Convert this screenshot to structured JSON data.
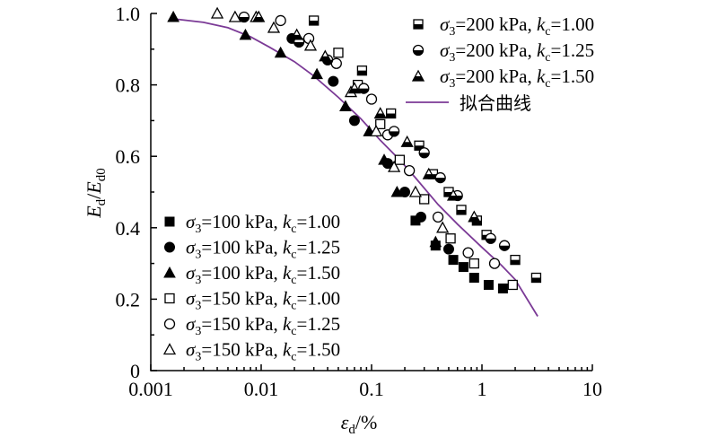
{
  "chart_data": {
    "type": "scatter",
    "x_scale": "log",
    "xlim": [
      0.001,
      10
    ],
    "ylim": [
      0,
      1.0
    ],
    "x_ticks": [
      {
        "value": 0.001,
        "label": "0.001"
      },
      {
        "value": 0.01,
        "label": "0.01"
      },
      {
        "value": 0.1,
        "label": "0.1"
      },
      {
        "value": 1,
        "label": "1"
      },
      {
        "value": 10,
        "label": "10"
      }
    ],
    "y_ticks": [
      {
        "value": 0,
        "label": "0"
      },
      {
        "value": 0.2,
        "label": "0.2"
      },
      {
        "value": 0.4,
        "label": "0.4"
      },
      {
        "value": 0.6,
        "label": "0.6"
      },
      {
        "value": 0.8,
        "label": "0.8"
      },
      {
        "value": 1.0,
        "label": "1.0"
      }
    ],
    "xlabel": {
      "base": "ε",
      "sub": "d",
      "suffix": "/%"
    },
    "ylabel": {
      "a": "E",
      "a_sub": "d",
      "sep": "/",
      "b": "E",
      "b_sub": "d0"
    },
    "grid": false,
    "series": [
      {
        "name": "σ3=100 kPa, kc=1.00",
        "marker": "square-filled",
        "legend": {
          "pre": "σ",
          "sub1": "3",
          "mid": "=100 kPa, ",
          "k": "k",
          "sub2": "c",
          "post": "=1.00"
        },
        "legend_group": "lower-left",
        "points": [
          [
            0.25,
            0.42
          ],
          [
            0.38,
            0.35
          ],
          [
            0.55,
            0.31
          ],
          [
            0.68,
            0.29
          ],
          [
            0.85,
            0.26
          ],
          [
            1.15,
            0.24
          ],
          [
            1.55,
            0.23
          ]
        ]
      },
      {
        "name": "σ3=100 kPa, kc=1.25",
        "marker": "circle-filled",
        "legend": {
          "pre": "σ",
          "sub1": "3",
          "mid": "=100 kPa, ",
          "k": "k",
          "sub2": "c",
          "post": "=1.25"
        },
        "legend_group": "lower-left",
        "points": [
          [
            0.019,
            0.93
          ],
          [
            0.045,
            0.81
          ],
          [
            0.07,
            0.7
          ],
          [
            0.14,
            0.58
          ],
          [
            0.2,
            0.5
          ],
          [
            0.28,
            0.43
          ],
          [
            0.5,
            0.34
          ]
        ]
      },
      {
        "name": "σ3=100 kPa, kc=1.50",
        "marker": "triangle-filled",
        "legend": {
          "pre": "σ",
          "sub1": "3",
          "mid": "=100 kPa, ",
          "k": "k",
          "sub2": "c",
          "post": "=1.50"
        },
        "legend_group": "lower-left",
        "points": [
          [
            0.0016,
            0.99
          ],
          [
            0.0072,
            0.94
          ],
          [
            0.015,
            0.89
          ],
          [
            0.032,
            0.83
          ],
          [
            0.058,
            0.74
          ],
          [
            0.095,
            0.67
          ],
          [
            0.13,
            0.59
          ],
          [
            0.17,
            0.5
          ],
          [
            0.38,
            0.36
          ]
        ]
      },
      {
        "name": "σ3=150 kPa, kc=1.00",
        "marker": "square-open",
        "legend": {
          "pre": "σ",
          "sub1": "3",
          "mid": "=150 kPa, ",
          "k": "k",
          "sub2": "c",
          "post": "=1.00"
        },
        "legend_group": "lower-left",
        "points": [
          [
            0.05,
            0.89
          ],
          [
            0.075,
            0.8
          ],
          [
            0.12,
            0.69
          ],
          [
            0.18,
            0.59
          ],
          [
            0.3,
            0.48
          ],
          [
            0.52,
            0.37
          ],
          [
            0.85,
            0.3
          ],
          [
            1.9,
            0.24
          ]
        ]
      },
      {
        "name": "σ3=150 kPa, kc=1.25",
        "marker": "circle-open",
        "legend": {
          "pre": "σ",
          "sub1": "3",
          "mid": "=150 kPa, ",
          "k": "k",
          "sub2": "c",
          "post": "=1.25"
        },
        "legend_group": "lower-left",
        "points": [
          [
            0.015,
            0.98
          ],
          [
            0.027,
            0.93
          ],
          [
            0.048,
            0.86
          ],
          [
            0.1,
            0.76
          ],
          [
            0.14,
            0.66
          ],
          [
            0.22,
            0.56
          ],
          [
            0.4,
            0.43
          ],
          [
            0.75,
            0.33
          ],
          [
            1.3,
            0.3
          ]
        ]
      },
      {
        "name": "σ3=150 kPa, kc=1.50",
        "marker": "triangle-open",
        "legend": {
          "pre": "σ",
          "sub1": "3",
          "mid": "=150 kPa, ",
          "k": "k",
          "sub2": "c",
          "post": "=1.50"
        },
        "legend_group": "lower-left",
        "points": [
          [
            0.004,
            1.0
          ],
          [
            0.0058,
            0.99
          ],
          [
            0.009,
            0.99
          ],
          [
            0.013,
            0.96
          ],
          [
            0.028,
            0.91
          ],
          [
            0.065,
            0.78
          ],
          [
            0.11,
            0.67
          ],
          [
            0.16,
            0.57
          ],
          [
            0.25,
            0.5
          ],
          [
            0.44,
            0.4
          ]
        ]
      },
      {
        "name": "σ3=200 kPa, kc=1.00",
        "marker": "square-half",
        "legend": {
          "pre": "σ",
          "sub1": "3",
          "mid": "=200 kPa, ",
          "k": "k",
          "sub2": "c",
          "post": "=1.00"
        },
        "legend_group": "upper-right",
        "points": [
          [
            0.03,
            0.98
          ],
          [
            0.082,
            0.84
          ],
          [
            0.15,
            0.72
          ],
          [
            0.27,
            0.63
          ],
          [
            0.36,
            0.55
          ],
          [
            0.5,
            0.5
          ],
          [
            0.65,
            0.45
          ],
          [
            0.9,
            0.42
          ],
          [
            1.1,
            0.38
          ],
          [
            2.0,
            0.31
          ],
          [
            3.1,
            0.26
          ]
        ]
      },
      {
        "name": "σ3=200 kPa, kc=1.25",
        "marker": "circle-half",
        "legend": {
          "pre": "σ",
          "sub1": "3",
          "mid": "=200 kPa, ",
          "k": "k",
          "sub2": "c",
          "post": "=1.25"
        },
        "legend_group": "upper-right",
        "points": [
          [
            0.007,
            0.99
          ],
          [
            0.022,
            0.92
          ],
          [
            0.04,
            0.87
          ],
          [
            0.085,
            0.79
          ],
          [
            0.16,
            0.67
          ],
          [
            0.3,
            0.61
          ],
          [
            0.42,
            0.54
          ],
          [
            0.6,
            0.49
          ],
          [
            1.2,
            0.37
          ],
          [
            1.6,
            0.35
          ]
        ]
      },
      {
        "name": "σ3=200 kPa, kc=1.50",
        "marker": "triangle-half",
        "legend": {
          "pre": "σ",
          "sub1": "3",
          "mid": "=200 kPa, ",
          "k": "k",
          "sub2": "c",
          "post": "=1.50"
        },
        "legend_group": "upper-right",
        "points": [
          [
            0.0095,
            0.99
          ],
          [
            0.021,
            0.94
          ],
          [
            0.038,
            0.88
          ],
          [
            0.07,
            0.79
          ],
          [
            0.12,
            0.72
          ],
          [
            0.21,
            0.64
          ],
          [
            0.33,
            0.55
          ],
          [
            0.55,
            0.49
          ],
          [
            0.85,
            0.43
          ]
        ]
      },
      {
        "name": "拟合曲线",
        "marker": "line",
        "legend": {
          "pre": "拟合曲线",
          "sub1": "",
          "mid": "",
          "k": "",
          "sub2": "",
          "post": ""
        },
        "legend_group": "upper-right",
        "color": "#7b3a96",
        "points": [
          [
            0.0016,
            0.985
          ],
          [
            0.003,
            0.975
          ],
          [
            0.005,
            0.96
          ],
          [
            0.008,
            0.935
          ],
          [
            0.012,
            0.905
          ],
          [
            0.02,
            0.865
          ],
          [
            0.03,
            0.825
          ],
          [
            0.05,
            0.765
          ],
          [
            0.08,
            0.705
          ],
          [
            0.12,
            0.645
          ],
          [
            0.18,
            0.59
          ],
          [
            0.25,
            0.54
          ],
          [
            0.4,
            0.465
          ],
          [
            0.6,
            0.41
          ],
          [
            1.0,
            0.345
          ],
          [
            1.5,
            0.295
          ],
          [
            2.0,
            0.255
          ],
          [
            3.2,
            0.152
          ]
        ]
      }
    ]
  }
}
